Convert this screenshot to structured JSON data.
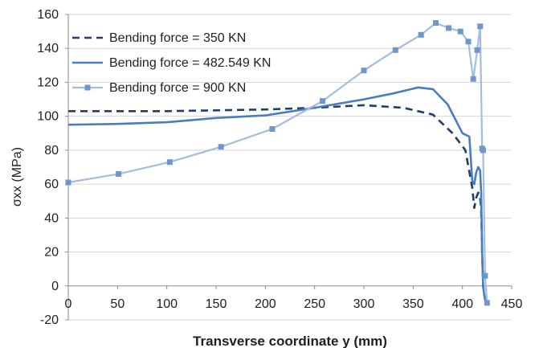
{
  "chart_data": {
    "type": "line",
    "title": "",
    "xlabel": "Transverse coordinate y (mm)",
    "ylabel": "σxx (MPa)",
    "xlim": [
      0,
      450
    ],
    "ylim": [
      -20,
      160
    ],
    "xticks": [
      0,
      50,
      100,
      150,
      200,
      250,
      300,
      350,
      400,
      450
    ],
    "yticks": [
      -20,
      0,
      20,
      40,
      60,
      80,
      100,
      120,
      140,
      160
    ],
    "grid": "horizontal",
    "legend_position": "top-left",
    "series": [
      {
        "name": "Bending force = 350 KN",
        "color": "#1f3e6e",
        "style": "dashed",
        "marker": "none",
        "x": [
          0,
          50,
          100,
          150,
          200,
          250,
          300,
          340,
          370,
          390,
          403,
          410,
          412,
          414,
          416,
          417,
          418,
          419,
          420,
          421,
          422,
          423,
          425
        ],
        "y": [
          103,
          103,
          103,
          103.5,
          104,
          105,
          106.5,
          105,
          101,
          90,
          80,
          58,
          46,
          52,
          55,
          54,
          52,
          45,
          20,
          0,
          -5,
          -8,
          -10
        ]
      },
      {
        "name": "Bending force = 482.549 KN",
        "color": "#4a7cc0",
        "style": "solid",
        "marker": "none",
        "x": [
          0,
          50,
          100,
          150,
          200,
          250,
          300,
          330,
          355,
          370,
          385,
          400,
          407,
          410,
          412,
          414,
          416,
          418,
          419,
          420,
          421,
          422,
          423,
          425
        ],
        "y": [
          95,
          95.5,
          96.5,
          99,
          100.5,
          105,
          110,
          113.5,
          117,
          116,
          107,
          90,
          88,
          62,
          60,
          67,
          70,
          68,
          55,
          20,
          0,
          -5,
          -8,
          -10
        ]
      },
      {
        "name": "Bending force = 900 KN",
        "color": "#a3bde0",
        "style": "solid",
        "marker": "square",
        "marker_color": "#6f97cc",
        "x": [
          0,
          51,
          103,
          155,
          207,
          258,
          300,
          332,
          358,
          373,
          386,
          398,
          406,
          411,
          415,
          418,
          420,
          421,
          423,
          425
        ],
        "y": [
          61,
          66,
          73,
          82,
          92.5,
          109,
          127,
          139,
          148,
          155,
          152,
          150,
          144,
          122,
          139,
          153,
          81,
          80,
          6,
          -10
        ]
      }
    ]
  }
}
